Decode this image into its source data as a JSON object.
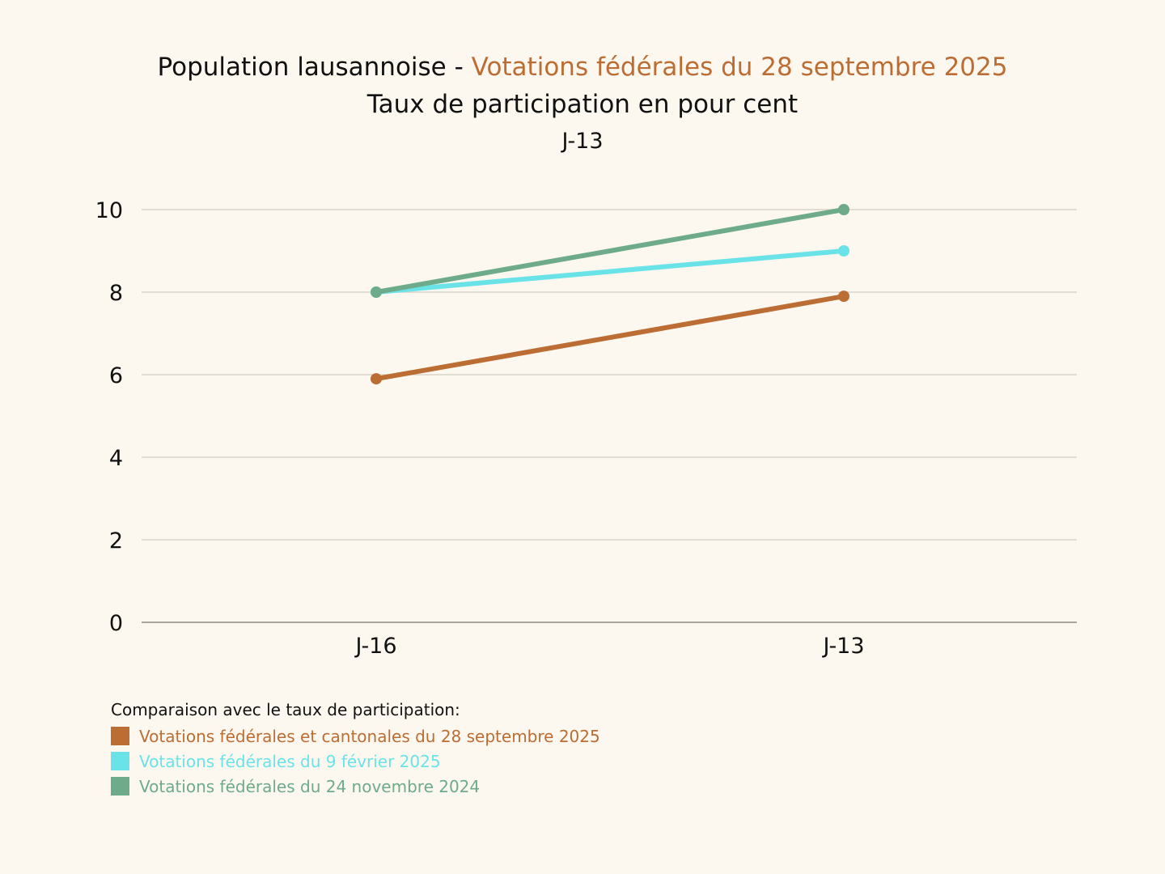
{
  "header": {
    "title_prefix": "Population lausannoise - ",
    "title_highlight": "Votations fédérales du 28 septembre 2025",
    "subtitle": "Taux de participation en pour cent",
    "subtitle2": "J-13"
  },
  "legend": {
    "title": "Comparaison avec le taux de participation:",
    "items": [
      {
        "label": "Votations fédérales et cantonales du 28 septembre 2025",
        "color": "#bb6d33"
      },
      {
        "label": "Votations fédérales du 9 février 2025",
        "color": "#6ae3e8"
      },
      {
        "label": "Votations fédérales du 24 novembre 2024",
        "color": "#6dab8a"
      }
    ]
  },
  "colors": {
    "background": "#fcf8ef",
    "accent": "#bb6d33",
    "gridline": "#d9d4ca",
    "axis": "#a8a49c"
  },
  "chart_data": {
    "type": "line",
    "title": "Population lausannoise - Votations fédérales du 28 septembre 2025",
    "subtitle": "Taux de participation en pour cent",
    "x": [
      "J-16",
      "J-13"
    ],
    "xlabel": "",
    "ylabel": "",
    "ylim": [
      0,
      10
    ],
    "yticks": [
      0,
      2,
      4,
      6,
      8,
      10
    ],
    "grid": true,
    "legend_position": "bottom-left",
    "series": [
      {
        "name": "Votations fédérales et cantonales du 28 septembre 2025",
        "color": "#bb6d33",
        "values": [
          5.9,
          7.9
        ]
      },
      {
        "name": "Votations fédérales du 9 février 2025",
        "color": "#6ae3e8",
        "values": [
          8.0,
          9.0
        ]
      },
      {
        "name": "Votations fédérales du 24 novembre 2024",
        "color": "#6dab8a",
        "values": [
          8.0,
          10.0
        ]
      }
    ]
  }
}
